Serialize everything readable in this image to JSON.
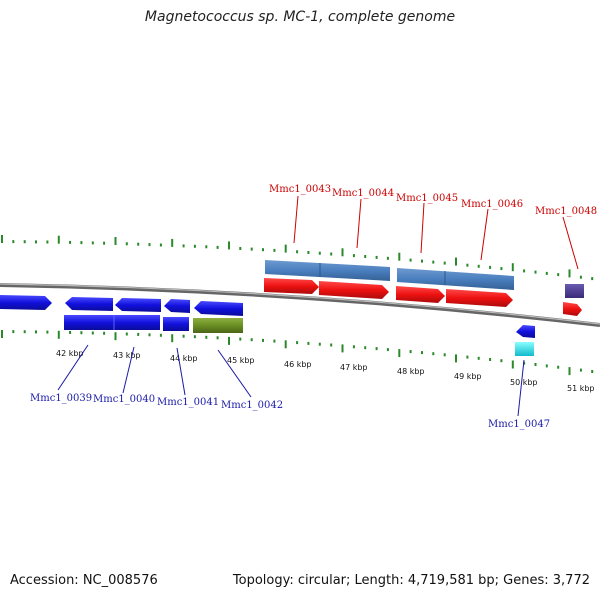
{
  "title": "Magnetococcus sp. MC-1, complete genome",
  "footer": {
    "accession": "Accession: NC_008576",
    "summary": "Topology: circular; Length: 4,719,581 bp; Genes: 3,772"
  },
  "scale_labels": [
    "42 kbp",
    "43 kbp",
    "44 kbp",
    "45 kbp",
    "46 kbp",
    "47 kbp",
    "48 kbp",
    "49 kbp",
    "50 kbp",
    "51 kbp"
  ],
  "genes_top": [
    {
      "id": "Mmc1_0043",
      "color": "#cc0000"
    },
    {
      "id": "Mmc1_0044",
      "color": "#cc0000"
    },
    {
      "id": "Mmc1_0045",
      "color": "#cc0000"
    },
    {
      "id": "Mmc1_0046",
      "color": "#cc0000"
    },
    {
      "id": "Mmc1_0048",
      "color": "#cc0000"
    }
  ],
  "genes_bottom": [
    {
      "id": "Mmc1_0039",
      "color": "#1a1aa8"
    },
    {
      "id": "Mmc1_0040",
      "color": "#1a1aa8"
    },
    {
      "id": "Mmc1_0041",
      "color": "#1a1aa8"
    },
    {
      "id": "Mmc1_0042",
      "color": "#1a1aa8"
    },
    {
      "id": "Mmc1_0047",
      "color": "#1a1aa8"
    }
  ],
  "colors": {
    "forward_cds": "#ee1111",
    "reverse_cds": "#1111dd",
    "gene_bar": "#4a7fbf",
    "rna": "#6b8e23",
    "trna": "#22dddd",
    "misc": "#4b3a8a",
    "tick": "#2a8a2a",
    "backbone": "#777777"
  }
}
